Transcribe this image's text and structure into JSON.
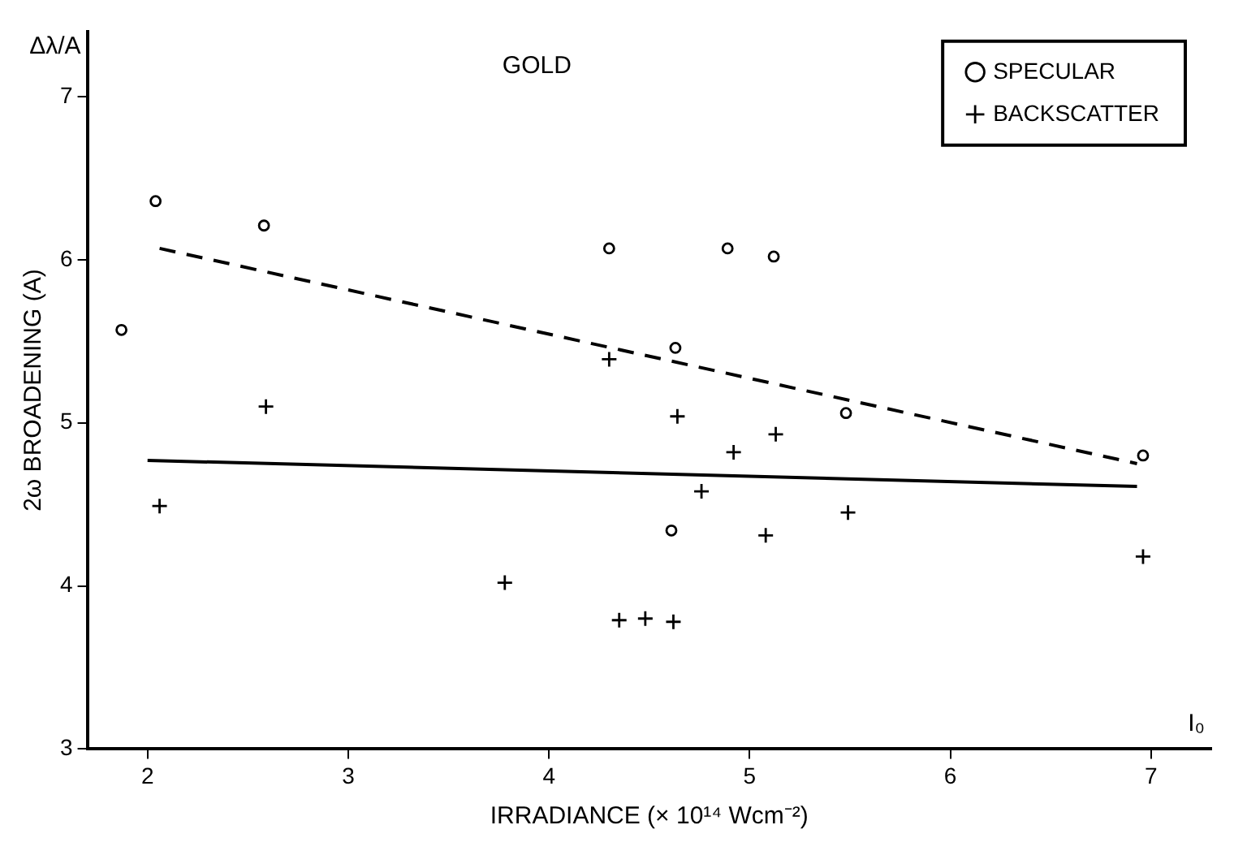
{
  "chart_data": {
    "type": "scatter",
    "title": "GOLD",
    "xlabel": "IRRADIANCE (× 10¹⁴ Wcm⁻²)",
    "ylabel": "2ω BROADENING (A)",
    "annotations": [
      "Δλ/A",
      "I₀"
    ],
    "xlim": [
      1.7,
      7.3
    ],
    "xticks": [
      2,
      3,
      4,
      5,
      6,
      7
    ],
    "ylim": [
      3,
      7.4
    ],
    "yticks": [
      3,
      4,
      5,
      6,
      7
    ],
    "grid": false,
    "legend": "top right",
    "series": [
      {
        "name": "SPECULAR",
        "type": "scatter",
        "color": "#000000",
        "marker": "circle",
        "x": [
          1.87,
          2.04,
          2.58,
          4.3,
          4.89,
          5.12,
          4.63,
          5.48,
          6.96,
          4.61
        ],
        "values": [
          5.57,
          6.36,
          6.21,
          6.07,
          6.07,
          6.02,
          5.46,
          5.06,
          4.8,
          4.34
        ]
      },
      {
        "name": "BACKSCATTER",
        "type": "scatter",
        "color": "#000000",
        "marker": "cross",
        "x": [
          2.06,
          2.59,
          3.78,
          4.3,
          4.64,
          5.13,
          4.92,
          4.76,
          5.49,
          5.08,
          6.96,
          4.35,
          4.48,
          4.62
        ],
        "values": [
          4.49,
          5.1,
          4.02,
          5.39,
          5.04,
          4.93,
          4.82,
          4.58,
          4.45,
          4.31,
          4.18,
          3.79,
          3.8,
          3.78
        ]
      },
      {
        "type": "line",
        "color": "#000000",
        "marker": "none",
        "line_style": "dashed",
        "x": [
          2.06,
          6.93
        ],
        "values": [
          6.07,
          4.75
        ]
      },
      {
        "type": "line",
        "color": "#000000",
        "marker": "none",
        "line_style": "solid",
        "x": [
          2.0,
          6.93
        ],
        "values": [
          4.77,
          4.61
        ]
      }
    ]
  }
}
